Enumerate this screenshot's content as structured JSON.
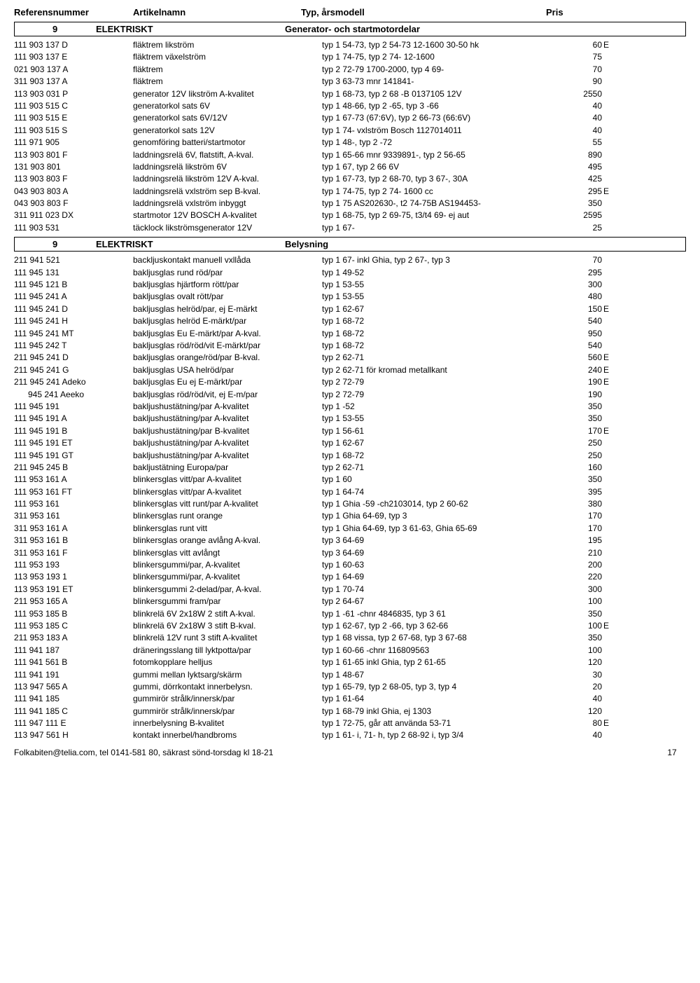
{
  "headers": {
    "col1": "Referensnummer",
    "col2": "Artikelnamn",
    "col3": "Typ, årsmodell",
    "col4": "Pris"
  },
  "sections": [
    {
      "num": "9",
      "title": "ELEKTRISKT",
      "subtitle": "Generator- och startmotordelar",
      "rows": [
        {
          "ref": "111 903 137 D",
          "name": "fläktrem likström",
          "typ": "typ 1 54-73, typ 2 54-73 12-1600 30-50 hk",
          "price": "60",
          "flag": "E"
        },
        {
          "ref": "111 903 137 E",
          "name": "fläktrem växelström",
          "typ": "typ 1 74-75, typ 2 74- 12-1600",
          "price": "75",
          "flag": ""
        },
        {
          "ref": "021 903 137 A",
          "name": "fläktrem",
          "typ": "typ 2 72-79 1700-2000, typ 4 69-",
          "price": "70",
          "flag": ""
        },
        {
          "ref": "311 903 137 A",
          "name": "fläktrem",
          "typ": "typ 3 63-73 mnr 141841-",
          "price": "90",
          "flag": ""
        },
        {
          "ref": "113 903 031 P",
          "name": "generator 12V likström A-kvalitet",
          "typ": "typ 1 68-73, typ 2 68 -B 0137105  12V",
          "price": "2550",
          "flag": ""
        },
        {
          "ref": "111 903 515 C",
          "name": "generatorkol sats 6V",
          "typ": "typ 1 48-66, typ 2 -65, typ 3 -66",
          "price": "40",
          "flag": ""
        },
        {
          "ref": "111 903 515 E",
          "name": "generatorkol sats 6V/12V",
          "typ": "typ 1 67-73 (67:6V), typ 2 66-73 (66:6V)",
          "price": "40",
          "flag": ""
        },
        {
          "ref": "111 903 515 S",
          "name": "generatorkol sats 12V",
          "typ": "typ 1 74- vxlström Bosch 1127014011",
          "price": "40",
          "flag": ""
        },
        {
          "ref": "111 971 905",
          "name": "genomföring batteri/startmotor",
          "typ": "typ 1 48-, typ 2 -72",
          "price": "55",
          "flag": ""
        },
        {
          "ref": "113 903 801 F",
          "name": "laddningsrelä 6V, flatstift, A-kval.",
          "typ": "typ 1 65-66 mnr 9339891-, typ 2 56-65",
          "price": "890",
          "flag": ""
        },
        {
          "ref": "131 903 801",
          "name": "laddningsrelä likström 6V",
          "typ": "typ 1 67, typ 2 66 6V",
          "price": "495",
          "flag": ""
        },
        {
          "ref": "113 903 803 F",
          "name": "laddningsrelä likström 12V A-kval.",
          "typ": "typ 1 67-73, typ 2 68-70, typ 3 67-, 30A",
          "price": "425",
          "flag": ""
        },
        {
          "ref": "043 903 803 A",
          "name": "laddningsrelä vxlström sep B-kval.",
          "typ": "typ 1 74-75, typ 2 74- 1600 cc",
          "price": "295",
          "flag": "E"
        },
        {
          "ref": "043 903 803 F",
          "name": "laddningsrelä vxlström inbyggt",
          "typ": "typ 1 75 AS202630-, t2 74-75B AS194453-",
          "price": "350",
          "flag": ""
        },
        {
          "ref": "311 911 023 DX",
          "name": "startmotor 12V BOSCH A-kvalitet",
          "typ": "typ 1 68-75, typ 2 69-75, t3/t4 69- ej aut",
          "price": "2595",
          "flag": ""
        },
        {
          "ref": "111 903 531",
          "name": "täcklock likströmsgenerator 12V",
          "typ": "typ 1 67-",
          "price": "25",
          "flag": ""
        }
      ]
    },
    {
      "num": "9",
      "title": "ELEKTRISKT",
      "subtitle": "Belysning",
      "rows": [
        {
          "ref": "211 941 521",
          "name": "backljuskontakt manuell vxllåda",
          "typ": "typ 1 67- inkl Ghia, typ 2 67-, typ 3",
          "price": "70",
          "flag": ""
        },
        {
          "ref": "111 945 131",
          "name": "bakljusglas rund röd/par",
          "typ": "typ 1 49-52",
          "price": "295",
          "flag": ""
        },
        {
          "ref": "111 945 121 B",
          "name": "bakljusglas hjärtform rött/par",
          "typ": "typ 1 53-55",
          "price": "300",
          "flag": ""
        },
        {
          "ref": "111 945 241 A",
          "name": "bakljusglas ovalt rött/par",
          "typ": "typ 1 53-55",
          "price": "480",
          "flag": ""
        },
        {
          "ref": "111 945 241 D",
          "name": "bakljusglas helröd/par, ej E-märkt",
          "typ": "typ 1 62-67",
          "price": "150",
          "flag": "E"
        },
        {
          "ref": "111 945 241 H",
          "name": "bakljusglas helröd E-märkt/par",
          "typ": "typ 1 68-72",
          "price": "540",
          "flag": ""
        },
        {
          "ref": "111 945 241 MT",
          "name": "bakljusglas Eu E-märkt/par A-kval.",
          "typ": "typ 1 68-72",
          "price": "950",
          "flag": ""
        },
        {
          "ref": "111 945 242 T",
          "name": "bakljusglas röd/röd/vit E-märkt/par",
          "typ": "typ 1 68-72",
          "price": "540",
          "flag": ""
        },
        {
          "ref": "211 945 241 D",
          "name": "bakljusglas orange/röd/par B-kval.",
          "typ": "typ 2 62-71",
          "price": "560",
          "flag": "E"
        },
        {
          "ref": "211 945 241 G",
          "name": "bakljusglas USA helröd/par",
          "typ": "typ 2 62-71 för kromad metallkant",
          "price": "240",
          "flag": "E"
        },
        {
          "ref": "211 945 241 Adeko",
          "name": "bakljusglas Eu ej E-märkt/par",
          "typ": "typ 2 72-79",
          "price": "190",
          "flag": "E"
        },
        {
          "ref": "      945 241 Aeeko",
          "name": "bakljusglas röd/röd/vit, ej E-m/par",
          "typ": "typ 2 72-79",
          "price": "190",
          "flag": ""
        },
        {
          "ref": "111 945 191",
          "name": "bakljushustätning/par A-kvalitet",
          "typ": "typ 1 -52",
          "price": "350",
          "flag": ""
        },
        {
          "ref": "111 945 191 A",
          "name": "bakljushustätning/par A-kvalitet",
          "typ": "typ 1 53-55",
          "price": "350",
          "flag": ""
        },
        {
          "ref": "111 945 191 B",
          "name": "bakljushustätning/par B-kvalitet",
          "typ": "typ 1 56-61",
          "price": "170",
          "flag": "E"
        },
        {
          "ref": "111 945 191 ET",
          "name": "bakljushustätning/par A-kvalitet",
          "typ": "typ 1 62-67",
          "price": "250",
          "flag": ""
        },
        {
          "ref": "111 945 191 GT",
          "name": "bakljushustätning/par A-kvalitet",
          "typ": "typ 1 68-72",
          "price": "250",
          "flag": ""
        },
        {
          "ref": "211 945 245 B",
          "name": "bakljustätning Europa/par",
          "typ": "typ 2 62-71",
          "price": "160",
          "flag": ""
        },
        {
          "ref": "111 953 161 A",
          "name": "blinkersglas vitt/par A-kvalitet",
          "typ": "typ 1 60",
          "price": "350",
          "flag": ""
        },
        {
          "ref": "111 953 161 FT",
          "name": "blinkersglas vitt/par A-kvalitet",
          "typ": "typ 1 64-74",
          "price": "395",
          "flag": ""
        },
        {
          "ref": "111 953 161",
          "name": "blinkersglas vitt runt/par A-kvalitet",
          "typ": "typ 1 Ghia -59 -ch2103014, typ 2 60-62",
          "price": "380",
          "flag": ""
        },
        {
          "ref": "311 953 161",
          "name": "blinkersglas runt orange",
          "typ": "typ 1 Ghia 64-69, typ 3",
          "price": "170",
          "flag": ""
        },
        {
          "ref": "311 953 161 A",
          "name": "blinkersglas runt vitt",
          "typ": "typ 1 Ghia 64-69, typ 3 61-63, Ghia 65-69",
          "price": "170",
          "flag": ""
        },
        {
          "ref": "311 953 161 B",
          "name": "blinkersglas orange avlång A-kval.",
          "typ": "typ 3 64-69",
          "price": "195",
          "flag": ""
        },
        {
          "ref": "311 953 161 F",
          "name": "blinkersglas vitt avlångt",
          "typ": "typ 3 64-69",
          "price": "210",
          "flag": ""
        },
        {
          "ref": "111 953 193",
          "name": "blinkersgummi/par, A-kvalitet",
          "typ": "typ 1 60-63",
          "price": "200",
          "flag": ""
        },
        {
          "ref": "113 953 193 1",
          "name": "blinkersgummi/par, A-kvalitet",
          "typ": "typ 1 64-69",
          "price": "220",
          "flag": ""
        },
        {
          "ref": "113 953 191 ET",
          "name": "blinkersgummi 2-delad/par, A-kval.",
          "typ": "typ 1 70-74",
          "price": "300",
          "flag": ""
        },
        {
          "ref": "211 953 165 A",
          "name": "blinkersgummi fram/par",
          "typ": "typ 2 64-67",
          "price": "100",
          "flag": ""
        },
        {
          "ref": "111 953 185 B",
          "name": "blinkrelä 6V 2x18W 2 stift A-kval.",
          "typ": "typ 1 -61 -chnr 4846835, typ 3 61",
          "price": "350",
          "flag": ""
        },
        {
          "ref": "111 953 185 C",
          "name": "blinkrelä 6V 2x18W 3 stift B-kval.",
          "typ": "typ 1 62-67, typ 2 -66, typ 3 62-66",
          "price": "100",
          "flag": "E"
        },
        {
          "ref": "211 953 183 A",
          "name": "blinkrelä 12V runt 3 stift A-kvalitet",
          "typ": "typ 1 68 vissa, typ 2 67-68, typ 3 67-68",
          "price": "350",
          "flag": ""
        },
        {
          "ref": "111 941 187",
          "name": "dräneringsslang till lyktpotta/par",
          "typ": "typ 1 60-66 -chnr 116809563",
          "price": "100",
          "flag": ""
        },
        {
          "ref": "111 941 561 B",
          "name": "fotomkopplare helljus",
          "typ": "typ 1 61-65 inkl Ghia, typ 2 61-65",
          "price": "120",
          "flag": ""
        },
        {
          "ref": "111 941 191",
          "name": "gummi mellan lyktsarg/skärm",
          "typ": "typ 1 48-67",
          "price": "30",
          "flag": ""
        },
        {
          "ref": "113 947 565 A",
          "name": "gummi, dörrkontakt innerbelysn.",
          "typ": "typ 1 65-79, typ 2 68-05, typ 3, typ 4",
          "price": "20",
          "flag": ""
        },
        {
          "ref": "111 941 185",
          "name": "gummirör strålk/innersk/par",
          "typ": "typ 1 61-64",
          "price": "40",
          "flag": ""
        },
        {
          "ref": "111 941 185 C",
          "name": "gummirör strålk/innersk/par",
          "typ": "typ 1 68-79 inkl Ghia, ej 1303",
          "price": "120",
          "flag": ""
        },
        {
          "ref": "111 947 111 E",
          "name": "innerbelysning B-kvalitet",
          "typ": "typ 1 72-75, går att använda 53-71",
          "price": "80",
          "flag": "E"
        },
        {
          "ref": "113 947 561 H",
          "name": "kontakt innerbel/handbroms",
          "typ": "typ 1 61- i, 71- h, typ 2 68-92 i, typ 3/4",
          "price": "40",
          "flag": ""
        }
      ]
    }
  ],
  "footer": {
    "contact": "Folkabiten@telia.com, tel 0141-581 80, säkrast sönd-torsdag kl 18-21",
    "page": "17"
  }
}
